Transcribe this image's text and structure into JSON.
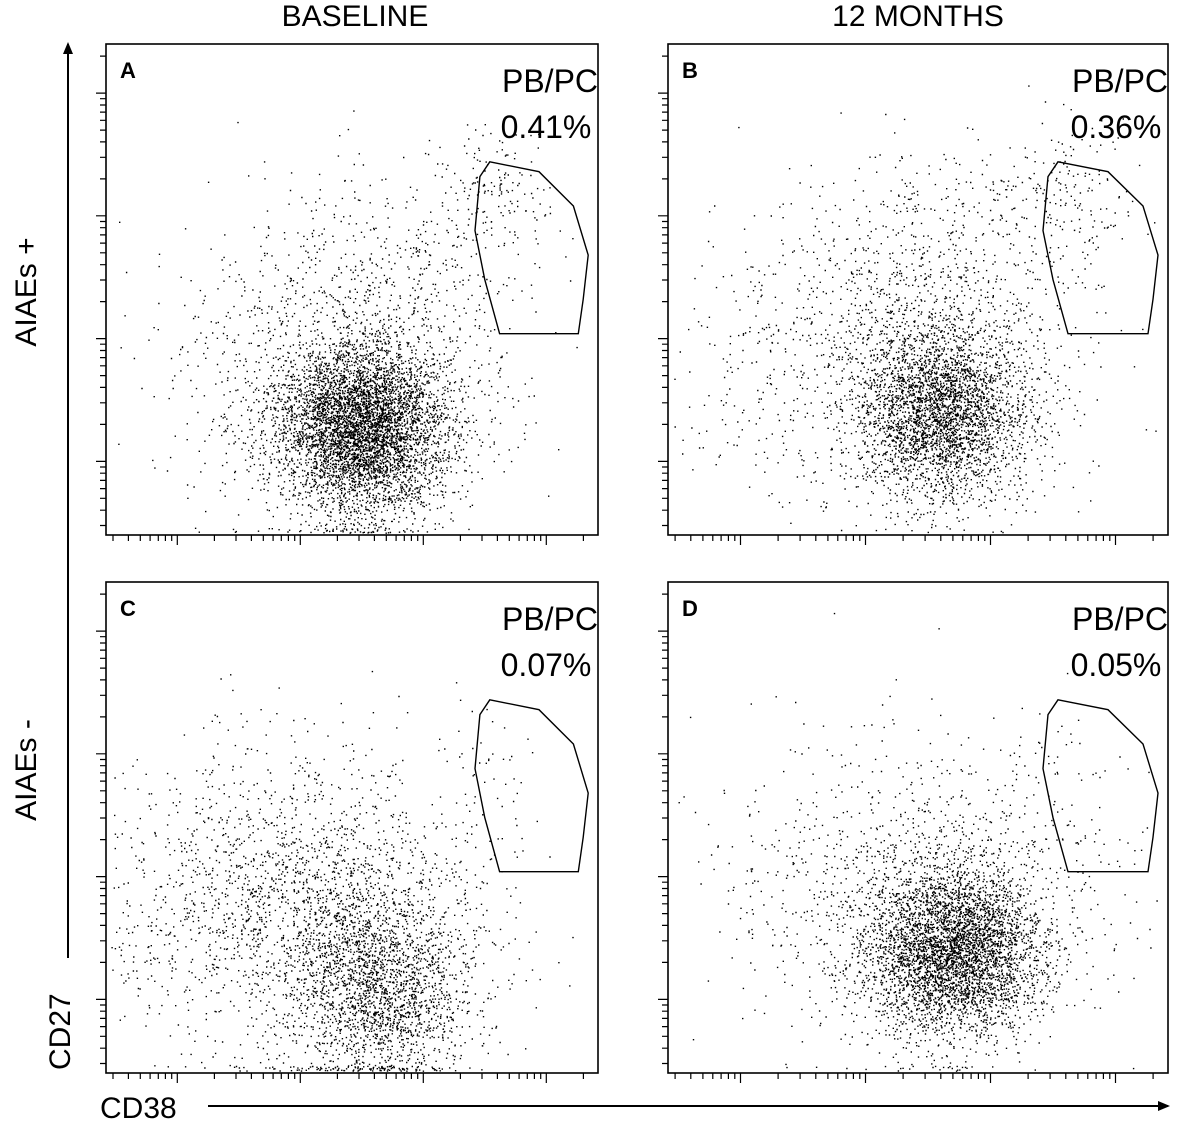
{
  "columns": [
    "BASELINE",
    "12 MONTHS"
  ],
  "rows": [
    "AIAEs +",
    "AIAEs -"
  ],
  "axes": {
    "x_label": "CD38",
    "y_label": "CD27",
    "x_scale": "log",
    "y_scale": "log"
  },
  "gate_name": "PB/PC",
  "colors": {
    "points": "#000000",
    "frame": "#000000",
    "background": "#ffffff"
  },
  "chart_data": [
    {
      "type": "scatter",
      "panel": "A",
      "column": "BASELINE",
      "row": "AIAEs +",
      "gate_value": "0.41%",
      "clusters": [
        {
          "cx": 0.52,
          "cy": 0.22,
          "sx": 0.085,
          "sy": 0.085,
          "n": 5000
        },
        {
          "cx": 0.48,
          "cy": 0.32,
          "sx": 0.18,
          "sy": 0.15,
          "n": 1200
        },
        {
          "cx": 0.78,
          "cy": 0.7,
          "sx": 0.06,
          "sy": 0.07,
          "n": 160
        },
        {
          "cx": 0.58,
          "cy": 0.55,
          "sx": 0.14,
          "sy": 0.1,
          "n": 300
        }
      ]
    },
    {
      "type": "scatter",
      "panel": "B",
      "column": "12 MONTHS",
      "row": "AIAEs +",
      "gate_value": "0.36%",
      "clusters": [
        {
          "cx": 0.55,
          "cy": 0.25,
          "sx": 0.085,
          "sy": 0.085,
          "n": 3200
        },
        {
          "cx": 0.45,
          "cy": 0.38,
          "sx": 0.17,
          "sy": 0.15,
          "n": 1300
        },
        {
          "cx": 0.8,
          "cy": 0.7,
          "sx": 0.06,
          "sy": 0.07,
          "n": 140
        },
        {
          "cx": 0.58,
          "cy": 0.6,
          "sx": 0.14,
          "sy": 0.1,
          "n": 280
        }
      ]
    },
    {
      "type": "scatter",
      "panel": "C",
      "column": "BASELINE",
      "row": "AIAEs -",
      "gate_value": "0.07%",
      "clusters": [
        {
          "cx": 0.55,
          "cy": 0.18,
          "sx": 0.09,
          "sy": 0.1,
          "n": 2000
        },
        {
          "cx": 0.38,
          "cy": 0.35,
          "sx": 0.2,
          "sy": 0.15,
          "n": 2200
        },
        {
          "cx": 0.77,
          "cy": 0.62,
          "sx": 0.05,
          "sy": 0.06,
          "n": 30
        }
      ]
    },
    {
      "type": "scatter",
      "panel": "D",
      "column": "12 MONTHS",
      "row": "AIAEs -",
      "gate_value": "0.05%",
      "clusters": [
        {
          "cx": 0.57,
          "cy": 0.25,
          "sx": 0.085,
          "sy": 0.085,
          "n": 4200
        },
        {
          "cx": 0.5,
          "cy": 0.38,
          "sx": 0.19,
          "sy": 0.15,
          "n": 1200
        },
        {
          "cx": 0.79,
          "cy": 0.62,
          "sx": 0.05,
          "sy": 0.06,
          "n": 20
        }
      ]
    }
  ]
}
